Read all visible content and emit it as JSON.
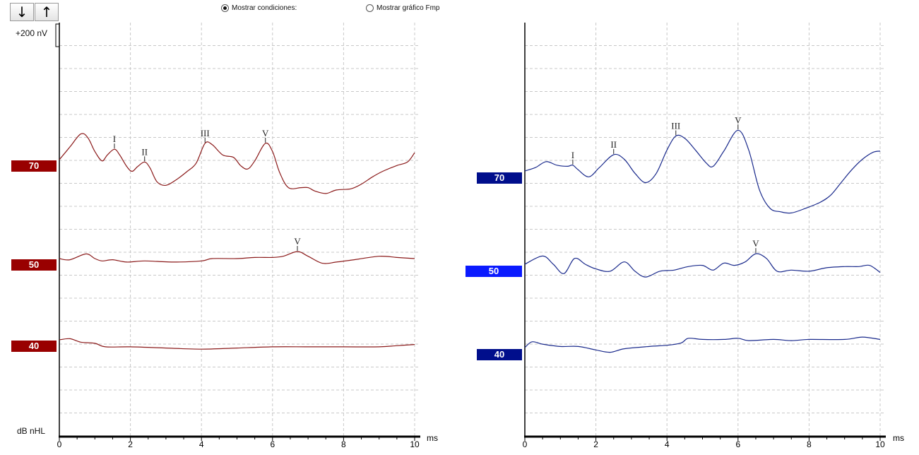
{
  "toolbar": {
    "down_arrow": "↓",
    "up_arrow": "↑",
    "down_icon": "arrow-down-icon",
    "up_icon": "arrow-up-icon"
  },
  "options": {
    "show_conditions": {
      "label": "Mostrar condiciones:",
      "checked": true
    },
    "show_fmp_graph": {
      "label": "Mostrar gráfico Fmp",
      "checked": false
    }
  },
  "scale_label": "+200 nV",
  "y_axis_unit": "dB nHL",
  "x_axis_unit": "ms",
  "colors": {
    "left_trace": "#8b1a1a",
    "left_badge": "#990000",
    "right_trace": "#1a2a8c",
    "right_badge_dark": "#000e8c",
    "right_badge_bright": "#0a1aff",
    "grid": "#c8c8c8"
  },
  "left_panel": {
    "x_ticks": [
      "0",
      "2",
      "4",
      "6",
      "8",
      "10"
    ],
    "traces": [
      {
        "level": "70",
        "points": [
          [
            0,
            0
          ],
          [
            0.3,
            0.55
          ],
          [
            0.6,
            1.1
          ],
          [
            0.8,
            0.95
          ],
          [
            1.0,
            0.35
          ],
          [
            1.2,
            -0.05
          ],
          [
            1.35,
            0.2
          ],
          [
            1.55,
            0.45
          ],
          [
            1.7,
            0.2
          ],
          [
            1.9,
            -0.3
          ],
          [
            2.05,
            -0.5
          ],
          [
            2.2,
            -0.3
          ],
          [
            2.4,
            -0.1
          ],
          [
            2.55,
            -0.35
          ],
          [
            2.75,
            -0.95
          ],
          [
            3.0,
            -1.1
          ],
          [
            3.3,
            -0.85
          ],
          [
            3.6,
            -0.5
          ],
          [
            3.85,
            -0.15
          ],
          [
            4.1,
            0.7
          ],
          [
            4.3,
            0.65
          ],
          [
            4.6,
            0.2
          ],
          [
            4.9,
            0.1
          ],
          [
            5.1,
            -0.25
          ],
          [
            5.3,
            -0.4
          ],
          [
            5.5,
            -0.05
          ],
          [
            5.8,
            0.7
          ],
          [
            6.0,
            0.35
          ],
          [
            6.2,
            -0.55
          ],
          [
            6.45,
            -1.2
          ],
          [
            6.8,
            -1.2
          ],
          [
            7.0,
            -1.2
          ],
          [
            7.2,
            -1.35
          ],
          [
            7.5,
            -1.45
          ],
          [
            7.8,
            -1.3
          ],
          [
            8.2,
            -1.25
          ],
          [
            8.5,
            -1.05
          ],
          [
            8.8,
            -0.75
          ],
          [
            9.1,
            -0.5
          ],
          [
            9.5,
            -0.25
          ],
          [
            9.8,
            -0.1
          ],
          [
            10,
            0.3
          ]
        ],
        "peaks": [
          {
            "label": "I",
            "ms": 1.55
          },
          {
            "label": "II",
            "ms": 2.4
          },
          {
            "label": "III",
            "ms": 4.1
          },
          {
            "label": "V",
            "ms": 5.8
          }
        ]
      },
      {
        "level": "50",
        "points": [
          [
            0,
            0
          ],
          [
            0.3,
            -0.05
          ],
          [
            0.75,
            0.2
          ],
          [
            1.0,
            0
          ],
          [
            1.2,
            -0.1
          ],
          [
            1.5,
            -0.05
          ],
          [
            1.9,
            -0.15
          ],
          [
            2.4,
            -0.1
          ],
          [
            3.2,
            -0.15
          ],
          [
            4.0,
            -0.1
          ],
          [
            4.3,
            0
          ],
          [
            5.0,
            0
          ],
          [
            5.5,
            0.05
          ],
          [
            6.0,
            0.05
          ],
          [
            6.3,
            0.1
          ],
          [
            6.7,
            0.3
          ],
          [
            7.0,
            0.1
          ],
          [
            7.4,
            -0.2
          ],
          [
            7.8,
            -0.15
          ],
          [
            8.3,
            -0.05
          ],
          [
            9.0,
            0.1
          ],
          [
            9.5,
            0.05
          ],
          [
            10,
            0
          ]
        ],
        "peaks": [
          {
            "label": "V",
            "ms": 6.7
          }
        ]
      },
      {
        "level": "40",
        "points": [
          [
            0,
            0
          ],
          [
            0.3,
            0.05
          ],
          [
            0.6,
            -0.1
          ],
          [
            1.0,
            -0.15
          ],
          [
            1.3,
            -0.3
          ],
          [
            2.0,
            -0.3
          ],
          [
            3.0,
            -0.35
          ],
          [
            4.0,
            -0.4
          ],
          [
            5.0,
            -0.35
          ],
          [
            6.0,
            -0.3
          ],
          [
            7.0,
            -0.3
          ],
          [
            8.0,
            -0.3
          ],
          [
            9.0,
            -0.3
          ],
          [
            9.5,
            -0.25
          ],
          [
            10,
            -0.2
          ]
        ],
        "peaks": []
      }
    ]
  },
  "right_panel": {
    "x_ticks": [
      "0",
      "2",
      "4",
      "6",
      "8",
      "10"
    ],
    "traces": [
      {
        "level": "70",
        "badge_style": "dark",
        "points": [
          [
            0,
            0
          ],
          [
            0.3,
            0.15
          ],
          [
            0.6,
            0.4
          ],
          [
            0.9,
            0.25
          ],
          [
            1.2,
            0.2
          ],
          [
            1.35,
            0.25
          ],
          [
            1.5,
            0.05
          ],
          [
            1.8,
            -0.25
          ],
          [
            2.1,
            0.15
          ],
          [
            2.5,
            0.7
          ],
          [
            2.8,
            0.5
          ],
          [
            3.1,
            -0.1
          ],
          [
            3.4,
            -0.5
          ],
          [
            3.7,
            -0.1
          ],
          [
            4.0,
            0.9
          ],
          [
            4.25,
            1.5
          ],
          [
            4.5,
            1.4
          ],
          [
            4.8,
            0.9
          ],
          [
            5.1,
            0.35
          ],
          [
            5.3,
            0.2
          ],
          [
            5.6,
            0.85
          ],
          [
            6.0,
            1.75
          ],
          [
            6.3,
            0.9
          ],
          [
            6.6,
            -0.8
          ],
          [
            6.9,
            -1.6
          ],
          [
            7.2,
            -1.75
          ],
          [
            7.5,
            -1.8
          ],
          [
            7.9,
            -1.6
          ],
          [
            8.3,
            -1.35
          ],
          [
            8.6,
            -1.05
          ],
          [
            8.9,
            -0.5
          ],
          [
            9.2,
            0.05
          ],
          [
            9.5,
            0.5
          ],
          [
            9.8,
            0.8
          ],
          [
            10,
            0.85
          ]
        ],
        "peaks": [
          {
            "label": "I",
            "ms": 1.35
          },
          {
            "label": "II",
            "ms": 2.5
          },
          {
            "label": "III",
            "ms": 4.25
          },
          {
            "label": "V",
            "ms": 6.0
          }
        ]
      },
      {
        "level": "50",
        "badge_style": "bright",
        "points": [
          [
            0,
            0
          ],
          [
            0.5,
            0.35
          ],
          [
            0.8,
            0
          ],
          [
            1.1,
            -0.4
          ],
          [
            1.4,
            0.25
          ],
          [
            1.7,
            0
          ],
          [
            2.0,
            -0.2
          ],
          [
            2.4,
            -0.3
          ],
          [
            2.8,
            0.1
          ],
          [
            3.1,
            -0.3
          ],
          [
            3.4,
            -0.55
          ],
          [
            3.8,
            -0.3
          ],
          [
            4.2,
            -0.25
          ],
          [
            4.6,
            -0.1
          ],
          [
            5.0,
            -0.05
          ],
          [
            5.3,
            -0.25
          ],
          [
            5.6,
            0.05
          ],
          [
            5.9,
            -0.05
          ],
          [
            6.2,
            0.1
          ],
          [
            6.5,
            0.45
          ],
          [
            6.8,
            0.25
          ],
          [
            7.1,
            -0.3
          ],
          [
            7.5,
            -0.25
          ],
          [
            8.0,
            -0.3
          ],
          [
            8.5,
            -0.15
          ],
          [
            9.0,
            -0.1
          ],
          [
            9.4,
            -0.1
          ],
          [
            9.7,
            -0.05
          ],
          [
            10,
            -0.35
          ]
        ],
        "peaks": [
          {
            "label": "V",
            "ms": 6.5
          }
        ]
      },
      {
        "level": "40",
        "badge_style": "dark",
        "points": [
          [
            0,
            0
          ],
          [
            0.2,
            0.25
          ],
          [
            0.5,
            0.15
          ],
          [
            1.0,
            0.05
          ],
          [
            1.5,
            0.05
          ],
          [
            2.0,
            -0.1
          ],
          [
            2.4,
            -0.2
          ],
          [
            2.8,
            -0.05
          ],
          [
            3.5,
            0.05
          ],
          [
            4.0,
            0.1
          ],
          [
            4.4,
            0.2
          ],
          [
            4.6,
            0.4
          ],
          [
            5.0,
            0.35
          ],
          [
            5.6,
            0.35
          ],
          [
            6.0,
            0.4
          ],
          [
            6.3,
            0.3
          ],
          [
            7.0,
            0.35
          ],
          [
            7.5,
            0.3
          ],
          [
            8.0,
            0.35
          ],
          [
            9.0,
            0.35
          ],
          [
            9.5,
            0.45
          ],
          [
            10,
            0.35
          ]
        ],
        "peaks": []
      }
    ]
  }
}
